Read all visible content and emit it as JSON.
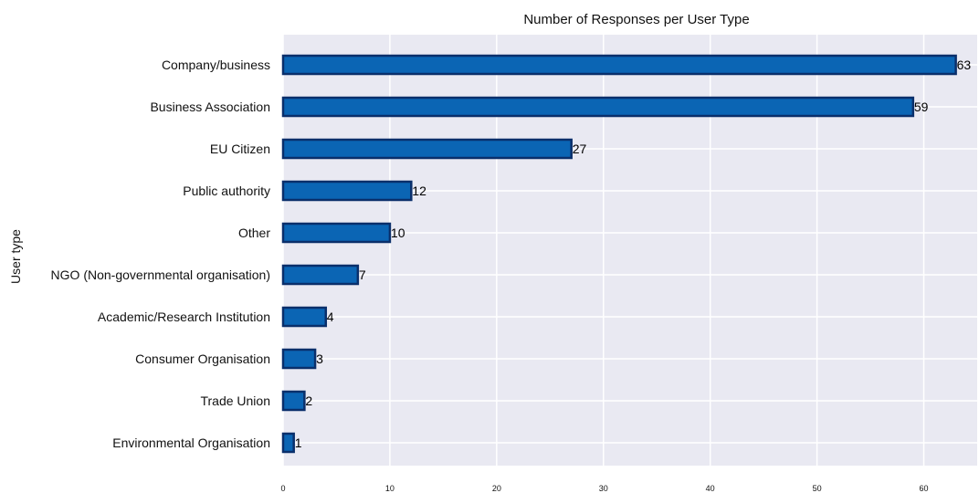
{
  "chart_data": {
    "type": "bar",
    "orientation": "horizontal",
    "title": "Number of Responses per User Type",
    "xlabel": "",
    "ylabel": "User type",
    "categories": [
      "Company/business",
      "Business Association",
      "EU Citizen",
      "Public authority",
      "Other",
      "NGO (Non-governmental organisation)",
      "Academic/Research Institution",
      "Consumer Organisation",
      "Trade Union",
      "Environmental Organisation"
    ],
    "values": [
      63,
      59,
      27,
      12,
      10,
      7,
      4,
      3,
      2,
      1
    ],
    "xlim": [
      0,
      65
    ],
    "xticks": [
      0,
      10,
      20,
      30,
      40,
      50,
      60
    ],
    "grid": true,
    "legend": "none",
    "colors": {
      "bar_fill": "#0b65b4",
      "bar_edge": "#0a2f6b",
      "plot_background": "#e9e9f2",
      "grid": "#ffffff"
    }
  }
}
